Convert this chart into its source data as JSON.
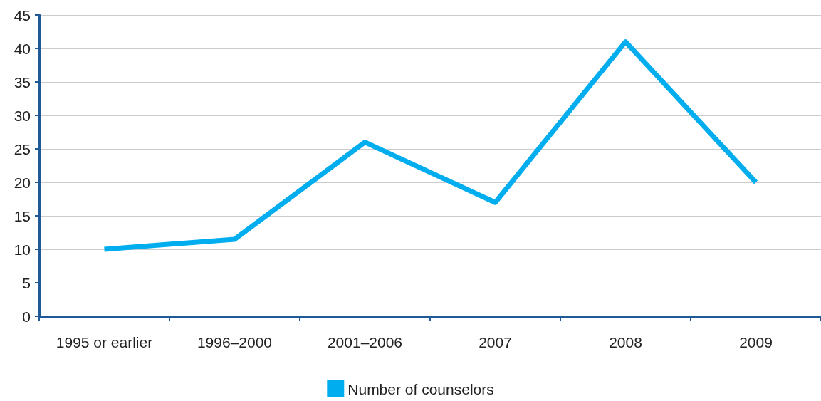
{
  "chart_data": {
    "type": "line",
    "categories": [
      "1995 or earlier",
      "1996–2000",
      "2001–2006",
      "2007",
      "2008",
      "2009"
    ],
    "series": [
      {
        "name": "Number of counselors",
        "color": "#00aeef",
        "values": [
          10,
          11.5,
          26,
          17,
          41,
          20
        ]
      }
    ],
    "ylim": [
      0,
      45
    ],
    "yticks": [
      0,
      5,
      10,
      15,
      20,
      25,
      30,
      35,
      40,
      45
    ],
    "grid": "y",
    "legend": "bottom",
    "marker": "none"
  }
}
